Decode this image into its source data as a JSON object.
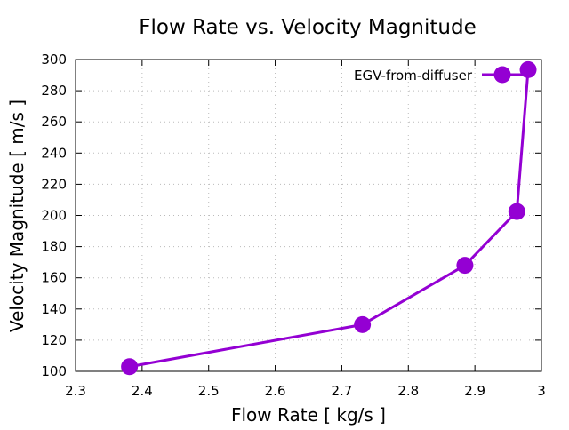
{
  "chart_data": {
    "type": "line",
    "title": "Flow Rate vs. Velocity Magnitude",
    "xlabel": "Flow Rate [ kg/s ]",
    "ylabel": "Velocity Magnitude [ m/s ]",
    "xlim": [
      2.3,
      3.0
    ],
    "ylim": [
      100,
      300
    ],
    "xticks": [
      2.3,
      2.4,
      2.5,
      2.6,
      2.7,
      2.8,
      2.9,
      3.0
    ],
    "xtick_labels": [
      "2.3",
      "2.4",
      "2.5",
      "2.6",
      "2.7",
      "2.8",
      "2.9",
      "3"
    ],
    "yticks": [
      100,
      120,
      140,
      160,
      180,
      200,
      220,
      240,
      260,
      280,
      300
    ],
    "ytick_labels": [
      "100",
      "120",
      "140",
      "160",
      "180",
      "200",
      "220",
      "240",
      "260",
      "280",
      "300"
    ],
    "grid": true,
    "legend_position": "top-right",
    "series": [
      {
        "name": "EGV-from-diffuser",
        "color": "#9400d3",
        "marker": "circle",
        "x": [
          2.381,
          2.731,
          2.885,
          2.963,
          2.98
        ],
        "y": [
          103,
          130,
          168,
          202.5,
          293.5
        ]
      }
    ]
  }
}
